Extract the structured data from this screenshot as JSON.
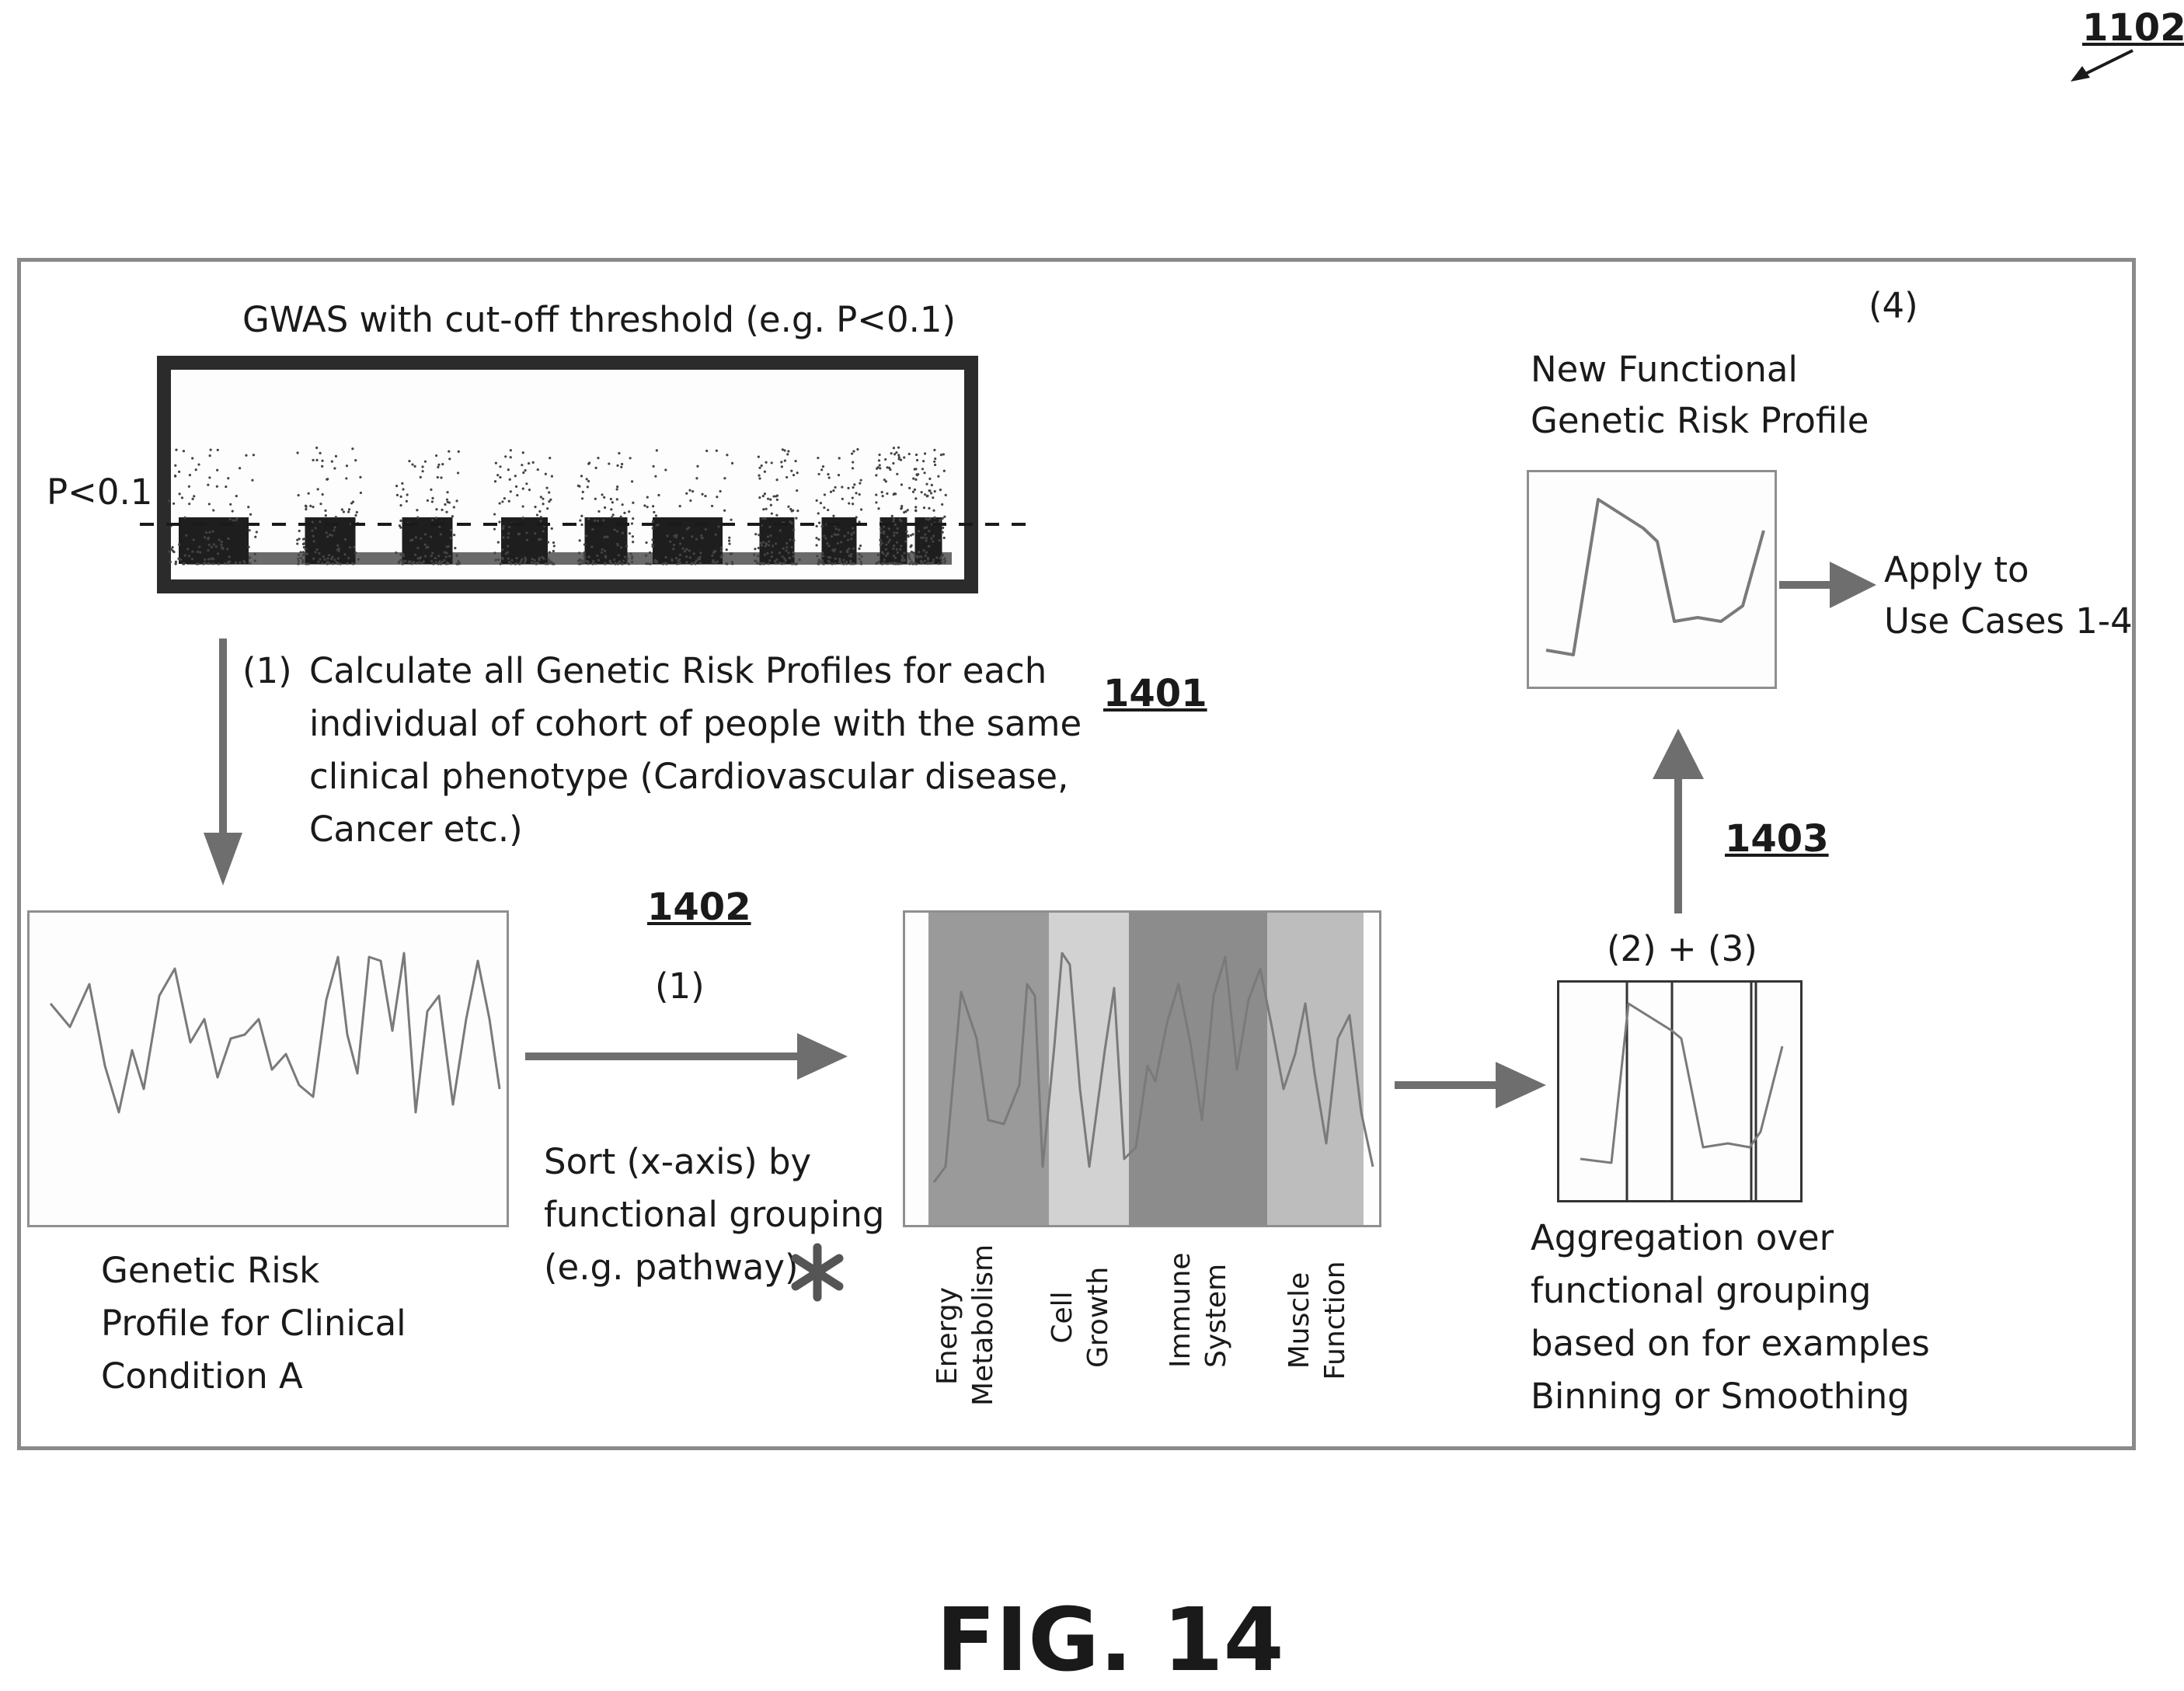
{
  "figure_ref": "1102",
  "figure_caption": "FIG. 14",
  "gwas": {
    "title": "GWAS with cut-off threshold (e.g. P<0.1)",
    "threshold_label": "P<0.1"
  },
  "steps": {
    "step1_number": "(1)",
    "step1_lines": [
      "Calculate all Genetic Risk Profiles for each",
      "individual of cohort of people with the same",
      "clinical phenotype (Cardiovascular disease,",
      "Cancer etc.)"
    ],
    "ref_1401": "1401",
    "ref_1402": "1402",
    "sort_number": "(1)",
    "sort_lines": [
      "Sort (x-axis) by",
      "functional grouping",
      "(e.g. pathway)"
    ],
    "ref_1403": "1403",
    "aggregate_number": "(2) + (3)",
    "aggregate_lines": [
      "Aggregation over",
      "functional grouping",
      "based on for examples",
      "Binning or Smoothing"
    ],
    "new_profile_number": "(4)",
    "new_profile_lines": [
      "New Functional",
      "Genetic Risk Profile"
    ],
    "apply_lines": [
      "Apply to",
      "Use Cases 1-4"
    ]
  },
  "profile_a_lines": [
    "Genetic Risk",
    "Profile for Clinical",
    "Condition A"
  ],
  "functional_groups": [
    {
      "line1": "Energy",
      "line2": "Metabolism",
      "color": "#9a9a9a"
    },
    {
      "line1": "Cell",
      "line2": "Growth",
      "color": "#d2d2d2"
    },
    {
      "line1": "Immune",
      "line2": "System",
      "color": "#8c8c8c"
    },
    {
      "line1": "Muscle",
      "line2": "Function",
      "color": "#bdbdbd"
    }
  ],
  "colors": {
    "arrow": "#6e6e6e",
    "line": "#7a7a7a",
    "frame": "#8a8a8a"
  }
}
